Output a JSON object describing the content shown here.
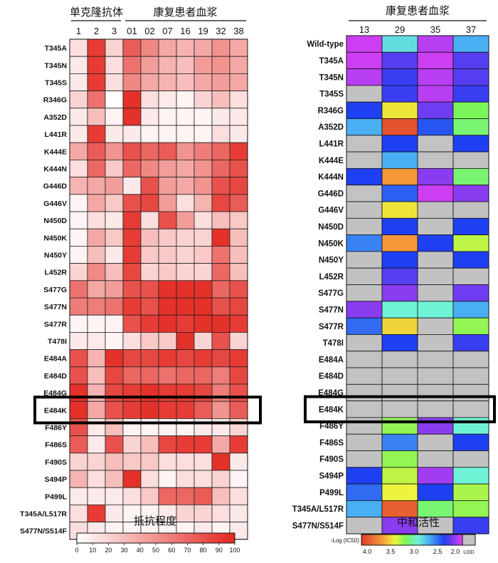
{
  "chart_data": [
    {
      "type": "heatmap",
      "title": "抵抗程度",
      "group_labels": [
        "单克隆抗体",
        "康复患者血浆"
      ],
      "groups": [
        {
          "label": "单克隆抗体",
          "columns": [
            "1",
            "2",
            "3"
          ]
        },
        {
          "label": "康复患者血浆",
          "columns": [
            "01",
            "02",
            "07",
            "16",
            "19",
            "32",
            "38"
          ]
        }
      ],
      "columns": [
        "1",
        "2",
        "3",
        "01",
        "02",
        "07",
        "16",
        "19",
        "32",
        "38"
      ],
      "rows": [
        "T345A",
        "T345N",
        "T345S",
        "R346G",
        "A352D",
        "L441R",
        "K444E",
        "K444N",
        "G446D",
        "G446V",
        "N450D",
        "N450K",
        "N450Y",
        "L452R",
        "S477G",
        "S477N",
        "S477R",
        "T478I",
        "E484A",
        "E484D",
        "E484G",
        "E484K",
        "F486Y",
        "F486S",
        "F490S",
        "S494P",
        "P499L",
        "T345A/L517R",
        "S477N/S514F"
      ],
      "values": [
        [
          15,
          90,
          20,
          75,
          55,
          40,
          35,
          40,
          50,
          40
        ],
        [
          10,
          90,
          15,
          65,
          45,
          35,
          30,
          45,
          50,
          40
        ],
        [
          10,
          90,
          15,
          55,
          40,
          35,
          30,
          40,
          45,
          40
        ],
        [
          20,
          65,
          0,
          95,
          15,
          10,
          5,
          20,
          30,
          15
        ],
        [
          10,
          30,
          5,
          95,
          10,
          5,
          5,
          5,
          10,
          10
        ],
        [
          10,
          90,
          10,
          10,
          5,
          5,
          5,
          5,
          15,
          10
        ],
        [
          40,
          75,
          50,
          80,
          70,
          75,
          50,
          60,
          70,
          90
        ],
        [
          15,
          70,
          25,
          70,
          55,
          45,
          40,
          50,
          70,
          80
        ],
        [
          35,
          40,
          45,
          10,
          80,
          45,
          40,
          50,
          80,
          85
        ],
        [
          5,
          40,
          25,
          80,
          85,
          45,
          15,
          35,
          85,
          75
        ],
        [
          5,
          15,
          10,
          90,
          15,
          80,
          45,
          15,
          30,
          25
        ],
        [
          5,
          40,
          25,
          90,
          30,
          25,
          20,
          20,
          95,
          30
        ],
        [
          5,
          30,
          10,
          90,
          25,
          25,
          20,
          25,
          65,
          30
        ],
        [
          20,
          55,
          30,
          85,
          20,
          25,
          20,
          20,
          70,
          30
        ],
        [
          65,
          40,
          45,
          80,
          80,
          95,
          95,
          95,
          70,
          80
        ],
        [
          60,
          60,
          65,
          90,
          80,
          95,
          95,
          95,
          80,
          85
        ],
        [
          5,
          5,
          5,
          80,
          90,
          95,
          90,
          95,
          95,
          90
        ],
        [
          10,
          10,
          5,
          15,
          25,
          25,
          95,
          20,
          80,
          20
        ],
        [
          80,
          35,
          95,
          85,
          85,
          90,
          85,
          90,
          85,
          90
        ],
        [
          80,
          30,
          85,
          70,
          70,
          65,
          70,
          70,
          60,
          85
        ],
        [
          95,
          35,
          85,
          90,
          95,
          90,
          90,
          85,
          60,
          80
        ],
        [
          95,
          40,
          80,
          90,
          95,
          90,
          90,
          75,
          50,
          75
        ],
        [
          80,
          10,
          30,
          5,
          5,
          5,
          5,
          10,
          10,
          20
        ],
        [
          75,
          10,
          80,
          20,
          30,
          85,
          90,
          90,
          40,
          90
        ],
        [
          20,
          20,
          30,
          25,
          25,
          15,
          15,
          15,
          95,
          10
        ],
        [
          35,
          15,
          30,
          95,
          15,
          5,
          15,
          15,
          20,
          5
        ],
        [
          10,
          10,
          10,
          15,
          25,
          70,
          70,
          75,
          30,
          15
        ],
        [
          15,
          90,
          10,
          5,
          5,
          10,
          20,
          20,
          15,
          10
        ],
        [
          15,
          10,
          5,
          5,
          5,
          5,
          5,
          10,
          5,
          10
        ]
      ],
      "color_scale": {
        "min_color": "#ffffff",
        "max_color": "#e3261f",
        "min": 0,
        "max": 100
      },
      "colorbar": {
        "label": "抵抗程度",
        "ticks": [
          0,
          10,
          20,
          30,
          40,
          50,
          60,
          70,
          80,
          90,
          100
        ]
      },
      "highlight_row": "E484K"
    },
    {
      "type": "heatmap",
      "title": "中和活性",
      "group_label": "康复患者血浆",
      "columns": [
        "13",
        "29",
        "35",
        "37"
      ],
      "rows": [
        "Wild-type",
        "T345A",
        "T345N",
        "T345S",
        "R346G",
        "A352D",
        "L441R",
        "K444E",
        "K444N",
        "G446D",
        "G446V",
        "N450D",
        "N450K",
        "N450Y",
        "L452R",
        "S477G",
        "S477N",
        "S477R",
        "T478I",
        "E484A",
        "E484D",
        "E484G",
        "E484K",
        "F486Y",
        "F486S",
        "F490S",
        "S494P",
        "P499L",
        "T345A/L517R",
        "S477N/S514F"
      ],
      "values": [
        [
          1.85,
          2.9,
          1.9,
          2.7
        ],
        [
          1.85,
          2.1,
          1.85,
          2.1
        ],
        [
          1.9,
          2.15,
          1.9,
          2.1
        ],
        [
          null,
          2.15,
          1.9,
          2.15
        ],
        [
          2.2,
          3.55,
          2.05,
          3.25
        ],
        [
          2.7,
          4.1,
          2.3,
          3.2
        ],
        [
          null,
          2.2,
          null,
          2.2
        ],
        [
          null,
          2.7,
          null,
          null
        ],
        [
          2.2,
          3.8,
          2.0,
          3.2
        ],
        [
          null,
          2.35,
          1.85,
          2.0
        ],
        [
          null,
          3.55,
          null,
          null
        ],
        [
          null,
          2.2,
          null,
          2.2
        ],
        [
          2.5,
          3.8,
          2.2,
          3.4
        ],
        [
          null,
          2.2,
          null,
          2.2
        ],
        [
          null,
          2.1,
          null,
          null
        ],
        [
          null,
          2.0,
          null,
          2.05
        ],
        [
          2.0,
          3.0,
          3.0,
          2.7
        ],
        [
          2.4,
          3.6,
          null,
          3.3
        ],
        [
          null,
          2.2,
          null,
          2.15
        ],
        [
          null,
          null,
          null,
          null
        ],
        [
          null,
          null,
          null,
          null
        ],
        [
          null,
          null,
          null,
          null
        ],
        [
          null,
          null,
          null,
          null
        ],
        [
          null,
          3.3,
          2.0,
          3.0
        ],
        [
          null,
          2.5,
          null,
          2.2
        ],
        [
          null,
          3.3,
          null,
          null
        ],
        [
          2.2,
          3.4,
          1.95,
          3.0
        ],
        [
          2.4,
          3.5,
          2.2,
          3.35
        ],
        [
          2.7,
          4.05,
          3.2,
          3.3
        ],
        [
          null,
          2.0,
          null,
          2.15
        ]
      ],
      "color_scale": {
        "metric": "-Log (IC50)",
        "min": 1.8,
        "max": 4.2,
        "stops": [
          {
            "value": 4.2,
            "color": "#e03b2b"
          },
          {
            "value": 3.75,
            "color": "#f5a33b"
          },
          {
            "value": 3.5,
            "color": "#ecf53b"
          },
          {
            "value": 3.25,
            "color": "#7cf55a"
          },
          {
            "value": 3.0,
            "color": "#6ff3d6"
          },
          {
            "value": 2.7,
            "color": "#4aaef3"
          },
          {
            "value": 2.2,
            "color": "#1f3ff2"
          },
          {
            "value": 2.0,
            "color": "#8a3cf0"
          },
          {
            "value": 1.8,
            "color": "#e43ff2"
          }
        ],
        "lod_color": "#c2c2c2"
      },
      "colorbar": {
        "label": "中和活性",
        "metric": "-Log (IC50)",
        "ticks": [
          "4.0",
          "3.5",
          "3.0",
          "2.5",
          "2.0"
        ],
        "lod_label": "LOD"
      },
      "highlight_row": "E484K"
    }
  ]
}
